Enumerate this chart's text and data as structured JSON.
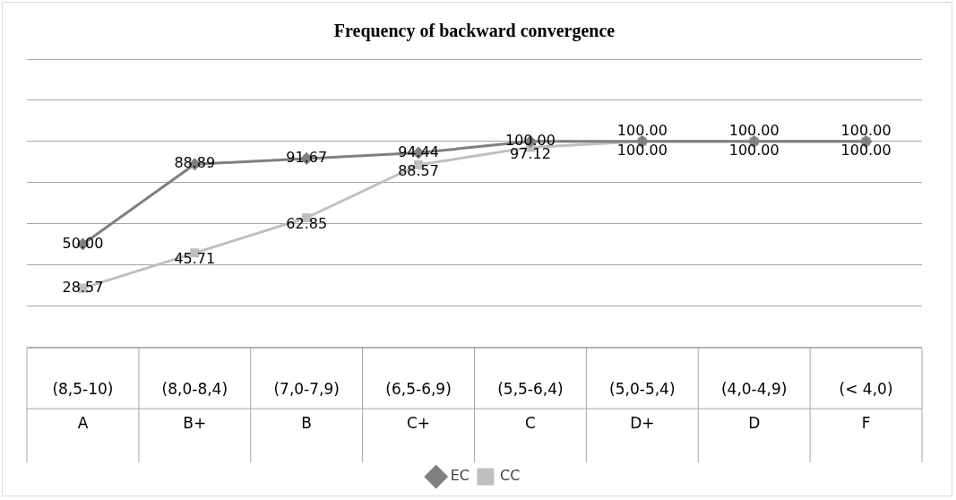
{
  "chart_data": {
    "type": "line",
    "title": "Frequency of backward convergence",
    "categories": [
      "(8,5-10)\nA",
      "(8,0-8,4)\nB+",
      "(7,0-7,9)\nB",
      "(6,5-6,9)\nC+",
      "(5,5-6,4)\nC",
      "(5,0-5,4)\nD+",
      "(4,0-4,9)\nD",
      "(< 4,0)\nF"
    ],
    "series": [
      {
        "name": "EC",
        "color": "#7f7f7f",
        "marker": "diamond",
        "values": [
          50.0,
          88.89,
          91.67,
          94.44,
          100.0,
          100.0,
          100.0,
          100.0
        ],
        "value_labels": [
          "50.00",
          "88.89",
          "91.67",
          "94.44",
          "100.00",
          "100.00",
          "100.00",
          "100.00"
        ]
      },
      {
        "name": "CC",
        "color": "#bfbfbf",
        "marker": "square",
        "values": [
          28.57,
          45.71,
          62.85,
          88.57,
          97.12,
          100.0,
          100.0,
          100.0
        ],
        "value_labels": [
          "28.57",
          "45.71",
          "62.85",
          "88.57",
          "97.12",
          "100.00",
          "100.00",
          "100.00"
        ]
      }
    ],
    "ylim": [
      0,
      140
    ],
    "yticks": [
      {
        "value": 0,
        "label": null
      },
      {
        "value": 20,
        "label": null
      },
      {
        "value": 40,
        "label": null
      },
      {
        "value": 60,
        "label": null
      },
      {
        "value": 80,
        "label": null
      },
      {
        "value": 100,
        "label": null
      },
      {
        "value": 120,
        "label": null
      },
      {
        "value": 140,
        "label": null
      }
    ],
    "grid": "y",
    "tick_labels": "x",
    "legend": "bottom"
  }
}
